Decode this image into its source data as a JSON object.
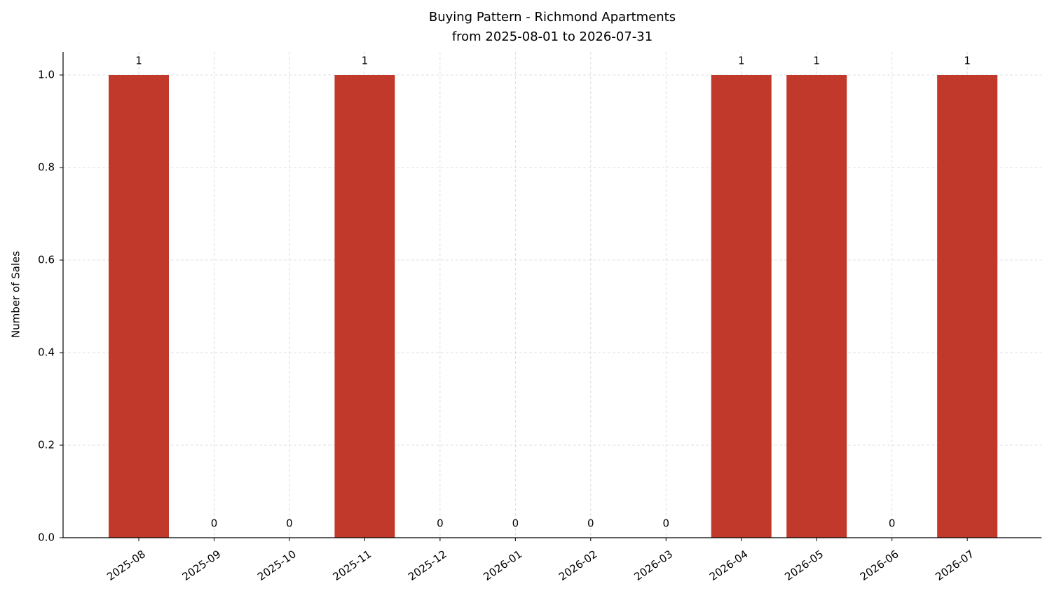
{
  "chart_data": {
    "type": "bar",
    "title": "Buying Pattern - Richmond Apartments",
    "subtitle": "from 2025-08-01 to 2026-07-31",
    "y_label": "Number of Sales",
    "categories": [
      "2025-08",
      "2025-09",
      "2025-10",
      "2025-11",
      "2025-12",
      "2026-01",
      "2026-02",
      "2026-03",
      "2026-04",
      "2026-05",
      "2026-06",
      "2026-07"
    ],
    "values": [
      1,
      0,
      0,
      1,
      0,
      0,
      0,
      0,
      1,
      1,
      0,
      1
    ],
    "color": "#c0392b",
    "ylim": [
      0,
      1.05
    ],
    "yticks": [
      {
        "value": 0,
        "label": "0.0"
      },
      0.2,
      0.4,
      0.6,
      0.8,
      {
        "value": 1,
        "label": "1.0"
      }
    ],
    "grid": true
  }
}
